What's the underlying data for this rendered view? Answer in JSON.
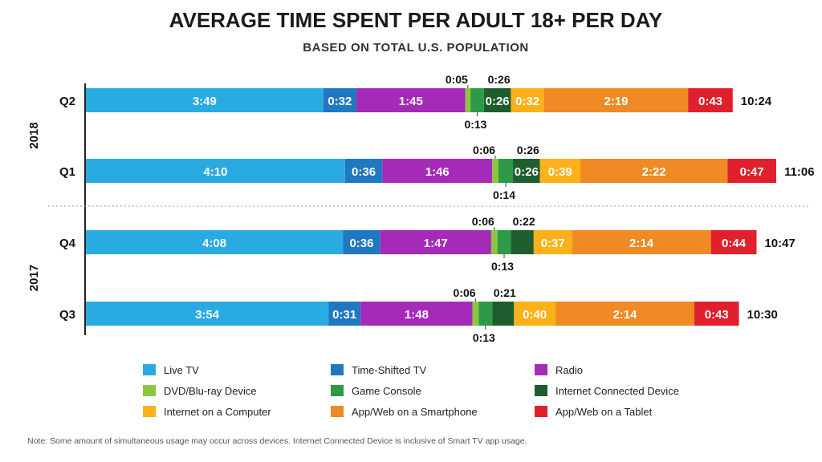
{
  "chart_data": {
    "type": "bar",
    "orientation": "horizontal",
    "stacked": true,
    "title": "AVERAGE TIME SPENT PER ADULT 18+ PER DAY",
    "subtitle": "BASED ON TOTAL U.S. POPULATION",
    "groups": [
      {
        "year": "2018",
        "quarters": [
          "Q2",
          "Q1"
        ]
      },
      {
        "year": "2017",
        "quarters": [
          "Q4",
          "Q3"
        ]
      }
    ],
    "categories": [
      "Q2",
      "Q1",
      "Q4",
      "Q3"
    ],
    "totals": [
      "10:24",
      "11:06",
      "10:47",
      "10:30"
    ],
    "series": [
      {
        "name": "Live TV",
        "color": "#29abe2",
        "labels": [
          "3:49",
          "4:10",
          "4:08",
          "3:54"
        ],
        "values_min": [
          229,
          250,
          248,
          234
        ]
      },
      {
        "name": "Time-Shifted TV",
        "color": "#1f78c1",
        "labels": [
          "0:32",
          "0:36",
          "0:36",
          "0:31"
        ],
        "values_min": [
          32,
          36,
          36,
          31
        ]
      },
      {
        "name": "Radio",
        "color": "#a52ab8",
        "labels": [
          "1:45",
          "1:46",
          "1:47",
          "1:48"
        ],
        "values_min": [
          105,
          106,
          107,
          108
        ]
      },
      {
        "name": "DVD/Blu-ray Device",
        "color": "#8cc63f",
        "labels": [
          "0:05",
          "0:06",
          "0:06",
          "0:06"
        ],
        "values_min": [
          5,
          6,
          6,
          6
        ]
      },
      {
        "name": "Game Console",
        "color": "#2e9a48",
        "labels": [
          "0:13",
          "0:14",
          "0:13",
          "0:13"
        ],
        "values_min": [
          13,
          14,
          13,
          13
        ]
      },
      {
        "name": "Internet Connected Device",
        "color": "#1e5e2e",
        "labels": [
          "0:26",
          "0:26",
          "0:22",
          "0:21"
        ],
        "values_min": [
          26,
          26,
          22,
          21
        ]
      },
      {
        "name": "Internet on a Computer",
        "color": "#fbb117",
        "labels": [
          "0:32",
          "0:39",
          "0:37",
          "0:40"
        ],
        "values_min": [
          32,
          39,
          37,
          40
        ]
      },
      {
        "name": "App/Web on a Smartphone",
        "color": "#f08a24",
        "labels": [
          "2:19",
          "2:22",
          "2:14",
          "2:14"
        ],
        "values_min": [
          139,
          142,
          134,
          134
        ]
      },
      {
        "name": "App/Web on a Tablet",
        "color": "#e0202c",
        "labels": [
          "0:43",
          "0:47",
          "0:44",
          "0:43"
        ],
        "values_min": [
          43,
          47,
          44,
          43
        ]
      }
    ],
    "legend_position": "bottom",
    "note": "Note: Some amount of simultaneous usage may occur across devices. Internet Connected Device is inclusive of Smart TV app usage."
  }
}
